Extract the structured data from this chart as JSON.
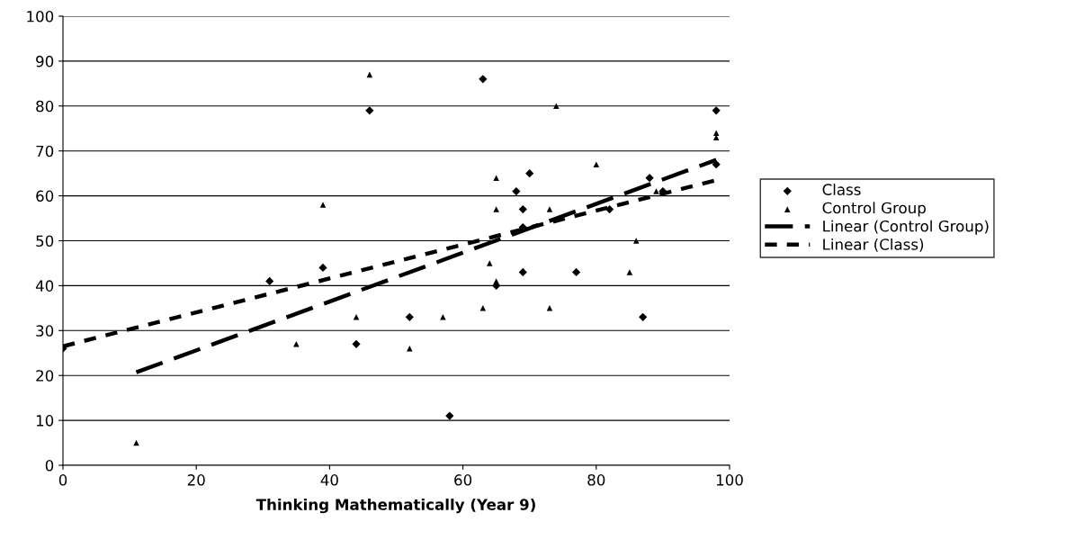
{
  "chart_data": {
    "type": "scatter",
    "xlabel": "Thinking Mathematically (Year 9)",
    "xlim": [
      0,
      100
    ],
    "xticks": [
      0,
      20,
      40,
      60,
      80,
      100
    ],
    "ylim": [
      0,
      100
    ],
    "yticks": [
      0,
      10,
      20,
      30,
      40,
      50,
      60,
      70,
      80,
      90,
      100
    ],
    "grid": "y",
    "legend": "right",
    "series": [
      {
        "name": "Class",
        "color": "#000000",
        "marker": "diamond",
        "x": [
          0,
          31,
          39,
          44,
          46,
          52,
          58,
          63,
          65,
          69,
          69,
          69,
          68,
          70,
          77,
          82,
          87,
          88,
          90,
          98,
          98
        ],
        "values": [
          26,
          41,
          44,
          27,
          79,
          33,
          11,
          86,
          40,
          53,
          57,
          43,
          61,
          65,
          43,
          57,
          33,
          64,
          61,
          79,
          67
        ]
      },
      {
        "name": "Control Group",
        "color": "#000000",
        "marker": "triangle",
        "x": [
          11,
          35,
          39,
          44,
          46,
          52,
          57,
          63,
          64,
          65,
          65,
          65,
          73,
          73,
          74,
          80,
          85,
          86,
          89,
          98,
          98
        ],
        "values": [
          5,
          27,
          58,
          33,
          87,
          26,
          33,
          35,
          45,
          64,
          57,
          41,
          57,
          35,
          80,
          67,
          43,
          50,
          61,
          74,
          73
        ]
      },
      {
        "name": "Linear (Control Group)",
        "type": "line",
        "color": "#000000",
        "line_style": "dashed",
        "x": [
          11,
          98
        ],
        "values": [
          20.7,
          68
        ]
      },
      {
        "name": "Linear (Class)",
        "type": "line",
        "color": "#000000",
        "line_style": "dotted",
        "x": [
          0,
          98
        ],
        "values": [
          26.5,
          63.5
        ]
      }
    ]
  }
}
